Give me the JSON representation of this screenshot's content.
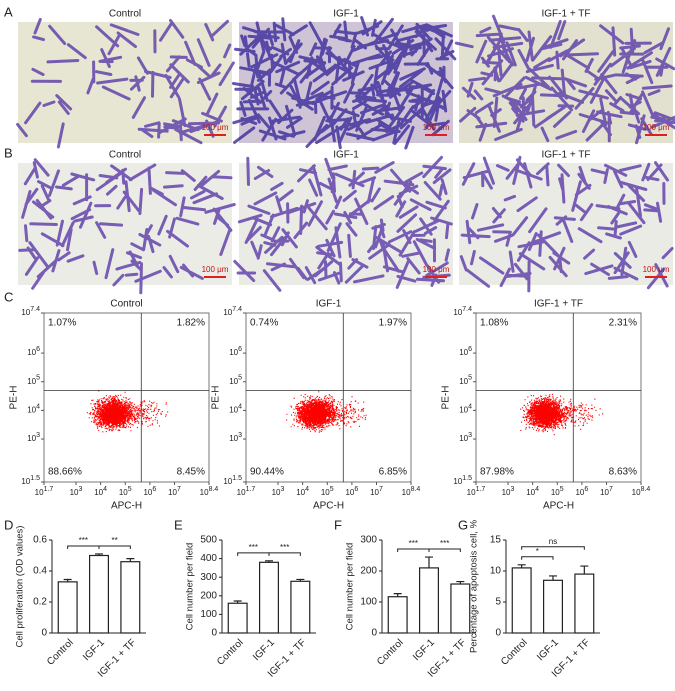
{
  "micrographs": [
    {
      "label": "A",
      "titles": [
        "Control",
        "IGF-1",
        "IGF-1 + TF"
      ],
      "scale_bar": "100 μm"
    },
    {
      "label": "B",
      "titles": [
        "Control",
        "IGF-1",
        "IGF-1 + TF"
      ],
      "scale_bar": "100 μm"
    }
  ],
  "chart_data": [
    {
      "type": "scatter",
      "panel": "C",
      "title": "Control",
      "xlabel": "APC-H",
      "ylabel": "PE-H",
      "log_scale": true,
      "xlim": [
        50.12,
        251188643
      ],
      "ylim": [
        31.62,
        25118864
      ],
      "xticks": [
        {
          "value": 50.12,
          "label": "10^1.7"
        },
        {
          "value": 1000,
          "label": "10^3"
        },
        {
          "value": 10000,
          "label": "10^4"
        },
        {
          "value": 100000,
          "label": "10^5"
        },
        {
          "value": 1000000,
          "label": "10^6"
        },
        {
          "value": 10000000,
          "label": "10^7"
        },
        {
          "value": 251188643,
          "label": "10^8.4"
        }
      ],
      "yticks": [
        {
          "value": 31.62,
          "label": "10^1.5"
        },
        {
          "value": 1000,
          "label": "10^3"
        },
        {
          "value": 10000,
          "label": "10^4"
        },
        {
          "value": 100000,
          "label": "10^5"
        },
        {
          "value": 1000000,
          "label": "10^6"
        },
        {
          "value": 25118864,
          "label": "10^7.4"
        }
      ],
      "gate": {
        "x": 446684,
        "y": 50119
      },
      "color": "#ff0000",
      "quadrants": {
        "values": [
          1.07,
          1.82,
          88.66,
          8.45
        ],
        "value_labels": [
          "1.07%",
          "1.82%",
          "88.66%",
          "8.45%"
        ]
      }
    },
    {
      "type": "scatter",
      "title": "IGF-1",
      "xlabel": "APC-H",
      "ylabel": "PE-H",
      "log_scale": true,
      "xlim": [
        50.12,
        251188643
      ],
      "ylim": [
        31.62,
        25118864
      ],
      "xticks": [
        {
          "value": 50.12,
          "label": "10^1.7"
        },
        {
          "value": 1000,
          "label": "10^3"
        },
        {
          "value": 10000,
          "label": "10^4"
        },
        {
          "value": 100000,
          "label": "10^5"
        },
        {
          "value": 1000000,
          "label": "10^6"
        },
        {
          "value": 10000000,
          "label": "10^7"
        },
        {
          "value": 251188643,
          "label": "10^8.4"
        }
      ],
      "yticks": [
        {
          "value": 31.62,
          "label": "10^1.5"
        },
        {
          "value": 1000,
          "label": "10^3"
        },
        {
          "value": 10000,
          "label": "10^4"
        },
        {
          "value": 100000,
          "label": "10^5"
        },
        {
          "value": 1000000,
          "label": "10^6"
        },
        {
          "value": 25118864,
          "label": "10^7.4"
        }
      ],
      "gate": {
        "x": 446684,
        "y": 50119
      },
      "color": "#ff0000",
      "quadrants": {
        "values": [
          0.74,
          1.97,
          90.44,
          6.85
        ],
        "value_labels": [
          "0.74%",
          "1.97%",
          "90.44%",
          "6.85%"
        ]
      }
    },
    {
      "type": "scatter",
      "title": "IGF-1 + TF",
      "xlabel": "APC-H",
      "ylabel": "PE-H",
      "log_scale": true,
      "xlim": [
        50.12,
        251188643
      ],
      "ylim": [
        31.62,
        25118864
      ],
      "xticks": [
        {
          "value": 50.12,
          "label": "10^1.7"
        },
        {
          "value": 1000,
          "label": "10^3"
        },
        {
          "value": 10000,
          "label": "10^4"
        },
        {
          "value": 100000,
          "label": "10^5"
        },
        {
          "value": 1000000,
          "label": "10^6"
        },
        {
          "value": 10000000,
          "label": "10^7"
        },
        {
          "value": 251188643,
          "label": "10^8.4"
        }
      ],
      "yticks": [
        {
          "value": 31.62,
          "label": "10^1.5"
        },
        {
          "value": 1000,
          "label": "10^3"
        },
        {
          "value": 10000,
          "label": "10^4"
        },
        {
          "value": 100000,
          "label": "10^5"
        },
        {
          "value": 1000000,
          "label": "10^6"
        },
        {
          "value": 25118864,
          "label": "10^7.4"
        }
      ],
      "gate": {
        "x": 446684,
        "y": 50119
      },
      "color": "#ff0000",
      "quadrants": {
        "values": [
          1.08,
          2.31,
          87.98,
          8.63
        ],
        "value_labels": [
          "1.08%",
          "2.31%",
          "87.98%",
          "8.63%"
        ]
      }
    },
    {
      "type": "bar",
      "panel": "D",
      "ylabel": "Cell proliferation (OD values)",
      "categories": [
        "Control",
        "IGF-1",
        "IGF-1 + TF"
      ],
      "values": [
        0.33,
        0.5,
        0.46
      ],
      "errors": [
        0.015,
        0.01,
        0.02
      ],
      "ylim": [
        0,
        0.6
      ],
      "yticks": [
        0,
        0.2,
        0.4,
        0.6
      ],
      "comparisons": [
        {
          "pair": [
            0,
            1
          ],
          "label": "***"
        },
        {
          "pair": [
            1,
            2
          ],
          "label": "**"
        }
      ]
    },
    {
      "type": "bar",
      "panel": "E",
      "ylabel": "Cell number per field",
      "categories": [
        "Control",
        "IGF-1",
        "IGF-1 + TF"
      ],
      "values": [
        160,
        380,
        278
      ],
      "errors": [
        12,
        8,
        10
      ],
      "ylim": [
        0,
        500
      ],
      "yticks": [
        0,
        100,
        200,
        300,
        400,
        500
      ],
      "comparisons": [
        {
          "pair": [
            0,
            1
          ],
          "label": "***"
        },
        {
          "pair": [
            1,
            2
          ],
          "label": "***"
        }
      ]
    },
    {
      "type": "bar",
      "panel": "F",
      "ylabel": "Cell number per field",
      "categories": [
        "Control",
        "IGF-1",
        "IGF-1 + TF"
      ],
      "values": [
        117,
        210,
        158
      ],
      "errors": [
        10,
        35,
        8
      ],
      "ylim": [
        0,
        300
      ],
      "yticks": [
        0,
        100,
        200,
        300
      ],
      "comparisons": [
        {
          "pair": [
            0,
            1
          ],
          "label": "***"
        },
        {
          "pair": [
            1,
            2
          ],
          "label": "***"
        }
      ]
    },
    {
      "type": "bar",
      "panel": "G",
      "ylabel": "Percentage of apoptosis cell, %",
      "categories": [
        "Control",
        "IGF-1",
        "IGF-1 + TF"
      ],
      "values": [
        10.5,
        8.5,
        9.5
      ],
      "errors": [
        0.5,
        0.7,
        1.3
      ],
      "ylim": [
        0,
        15
      ],
      "yticks": [
        0,
        5,
        10,
        15
      ],
      "comparisons": [
        {
          "pair": [
            0,
            1
          ],
          "label": "*"
        },
        {
          "pair": [
            0,
            2
          ],
          "label": "ns"
        }
      ]
    }
  ]
}
